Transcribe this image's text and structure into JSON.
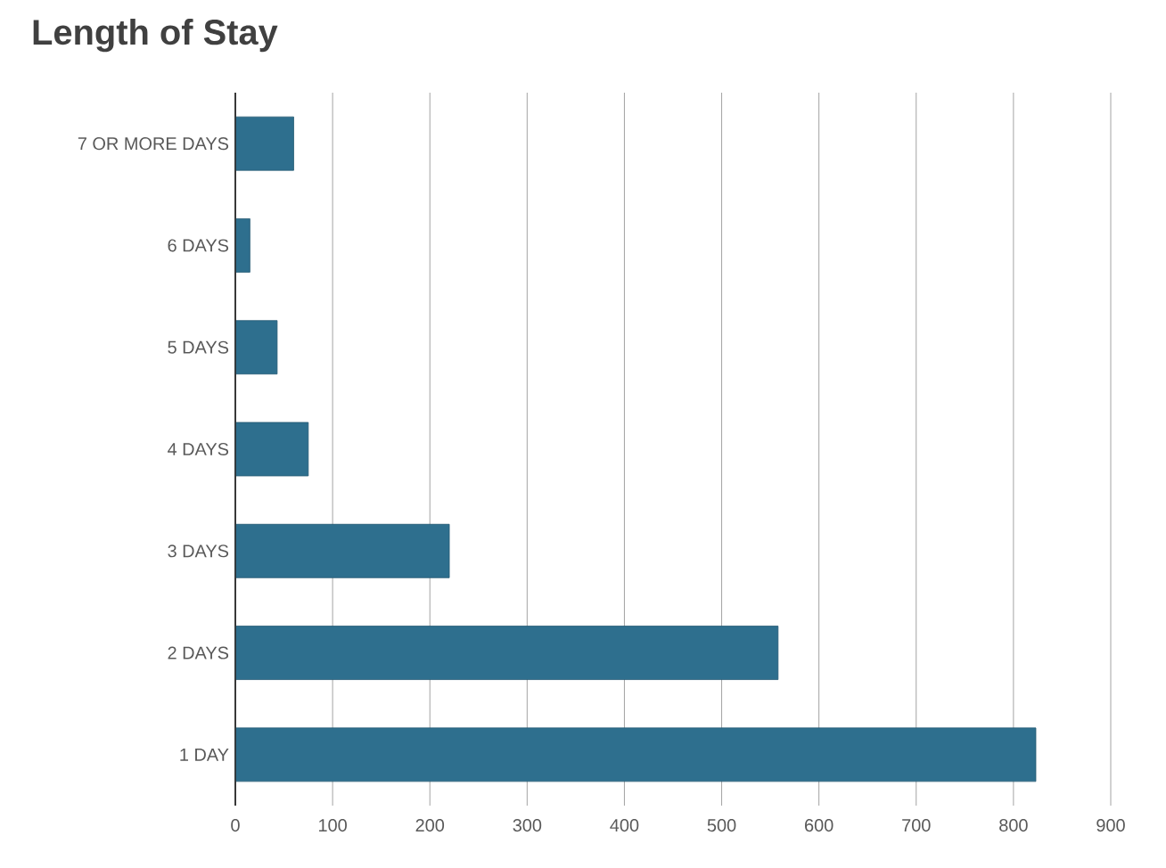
{
  "chart_data": {
    "type": "bar",
    "orientation": "horizontal",
    "title": "Length of Stay",
    "categories": [
      "7 OR MORE DAYS",
      "6 DAYS",
      "5 DAYS",
      "4 DAYS",
      "3 DAYS",
      "2 DAYS",
      "1 DAY"
    ],
    "values": [
      60,
      15,
      43,
      75,
      220,
      558,
      823
    ],
    "color": "#2e6f8e",
    "xlim": [
      0,
      900
    ],
    "xticks": [
      0,
      100,
      200,
      300,
      400,
      500,
      600,
      700,
      800,
      900
    ],
    "grid": "x"
  }
}
